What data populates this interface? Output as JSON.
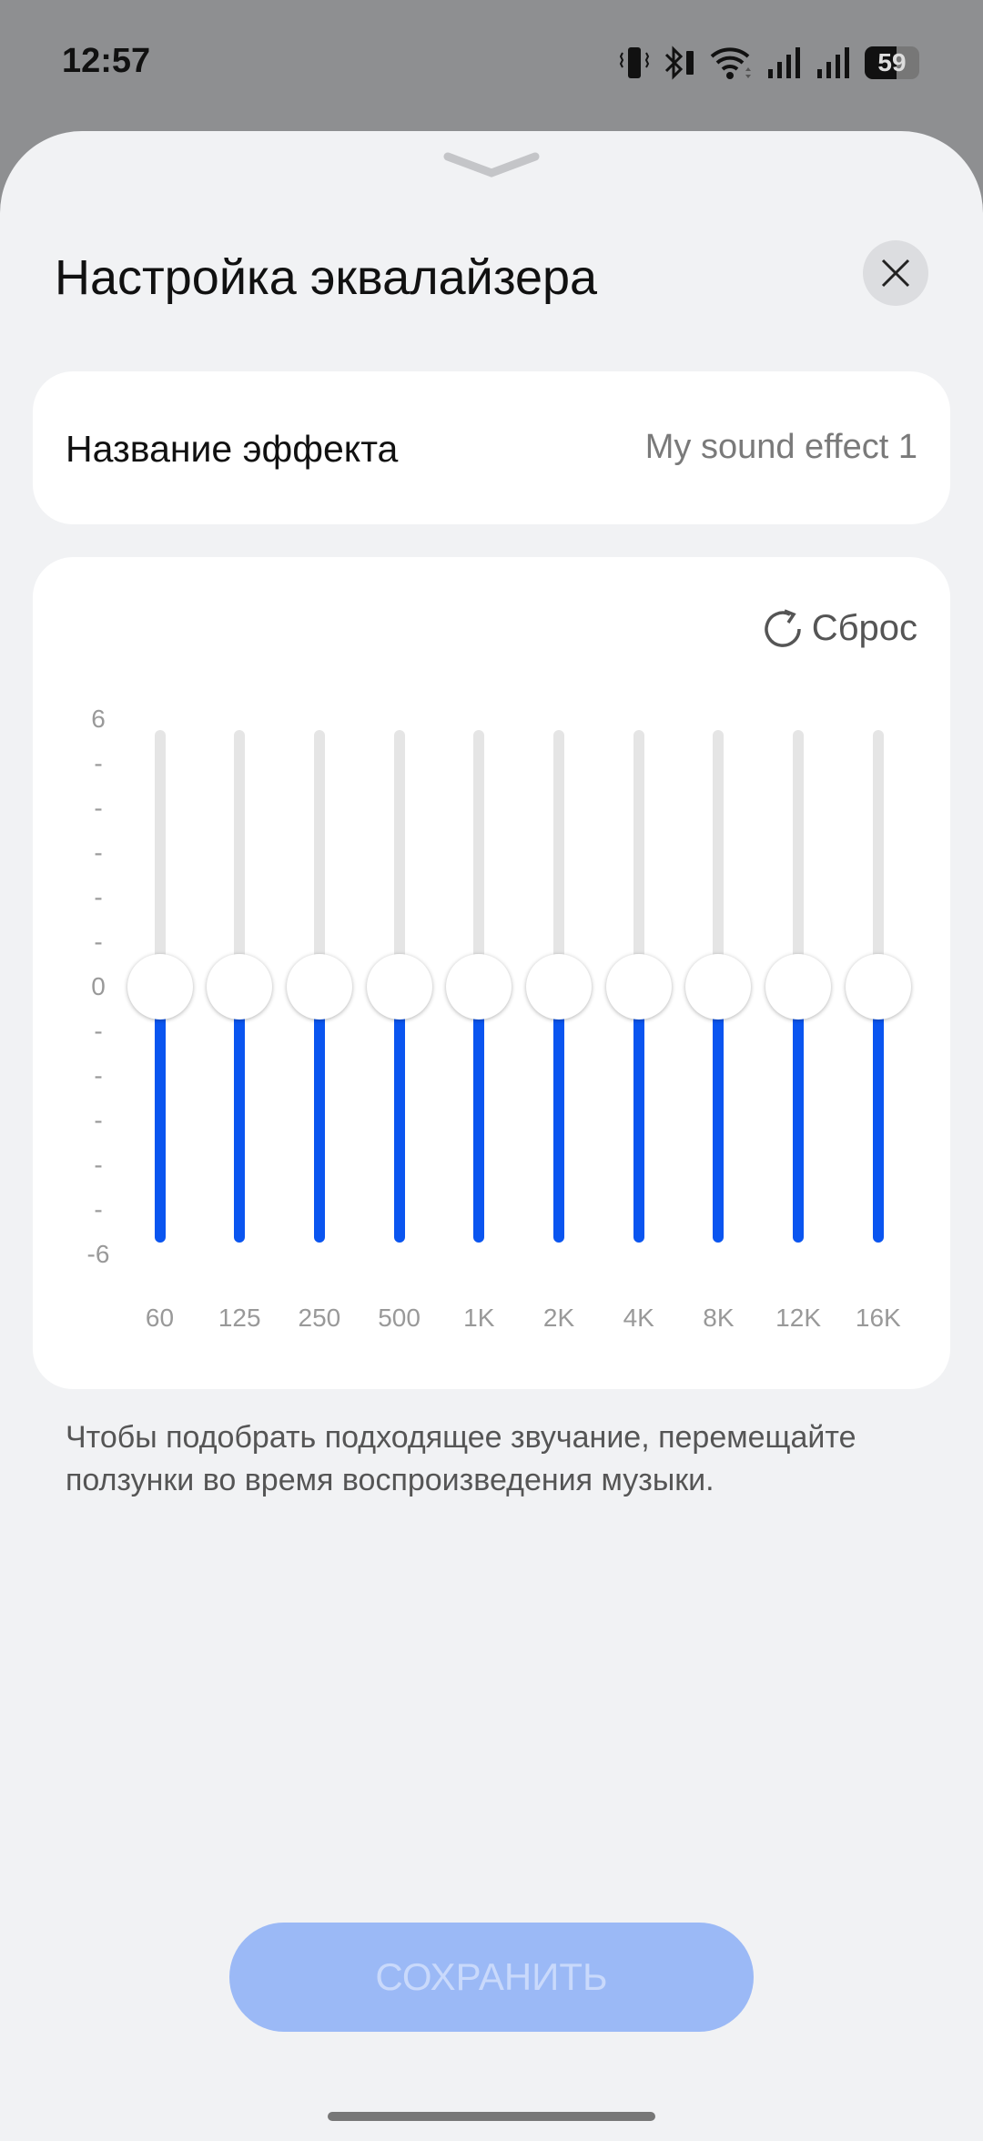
{
  "status_bar": {
    "time": "12:57",
    "battery": "59",
    "icons": [
      "vibrate-icon",
      "bluetooth-icon",
      "wifi-icon",
      "signal-icon",
      "signal-icon",
      "battery-icon"
    ]
  },
  "sheet": {
    "title": "Настройка эквалайзера",
    "close_icon": "close-icon",
    "handle_icon": "chevron-down-icon"
  },
  "effect": {
    "label": "Название эффекта",
    "value": "My sound effect 1"
  },
  "equalizer": {
    "reset_label": "Сброс",
    "y_labels": {
      "max": "6",
      "mid": "0",
      "min": "-6"
    },
    "range": [
      -6,
      6
    ],
    "bands": [
      {
        "label": "60",
        "value": 0
      },
      {
        "label": "125",
        "value": 0
      },
      {
        "label": "250",
        "value": 0
      },
      {
        "label": "500",
        "value": 0
      },
      {
        "label": "1K",
        "value": 0
      },
      {
        "label": "2K",
        "value": 0
      },
      {
        "label": "4K",
        "value": 0
      },
      {
        "label": "8K",
        "value": 0
      },
      {
        "label": "12K",
        "value": 0
      },
      {
        "label": "16K",
        "value": 0
      }
    ],
    "accent": "#0a55f0"
  },
  "hint": "Чтобы подобрать подходящее звучание, перемещайте ползунки во время воспроизведения музыки.",
  "save_label": "СОХРАНИТЬ"
}
